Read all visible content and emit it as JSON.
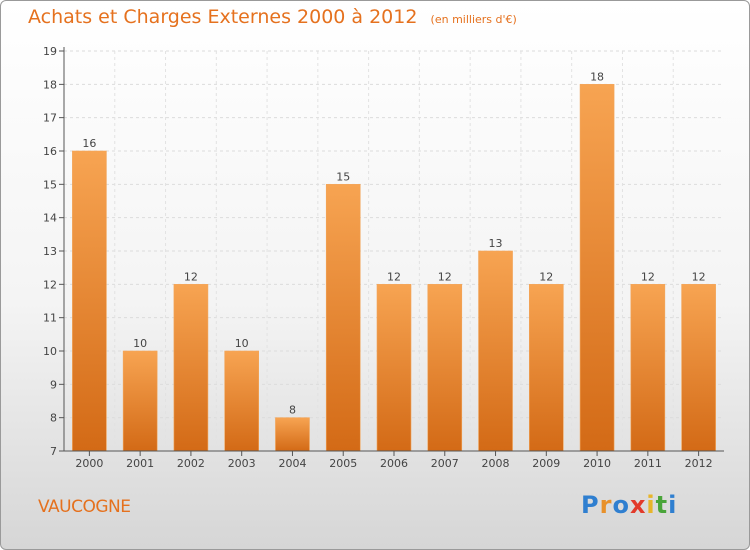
{
  "header": {
    "title": "Achats et Charges Externes 2000 à 2012",
    "unit": "(en milliers d'€)"
  },
  "footer": {
    "commune": "VAUCOGNE",
    "logo_text": "Proxiti"
  },
  "colors": {
    "accent": "#e5711e",
    "bar_light": "#f7a452",
    "bar_dark": "#d36a16"
  },
  "chart_data": {
    "type": "bar",
    "title": "Achats et Charges Externes 2000 à 2012",
    "subtitle": "(en milliers d'€)",
    "categories": [
      "2000",
      "2001",
      "2002",
      "2003",
      "2004",
      "2005",
      "2006",
      "2007",
      "2008",
      "2009",
      "2010",
      "2011",
      "2012"
    ],
    "values": [
      16,
      10,
      12,
      10,
      8,
      15,
      12,
      12,
      13,
      12,
      18,
      12,
      12
    ],
    "yticks": [
      7,
      8,
      9,
      10,
      11,
      12,
      13,
      14,
      15,
      16,
      17,
      18,
      19
    ],
    "ylim": [
      7,
      19
    ],
    "grid": true,
    "data_labels": true
  }
}
